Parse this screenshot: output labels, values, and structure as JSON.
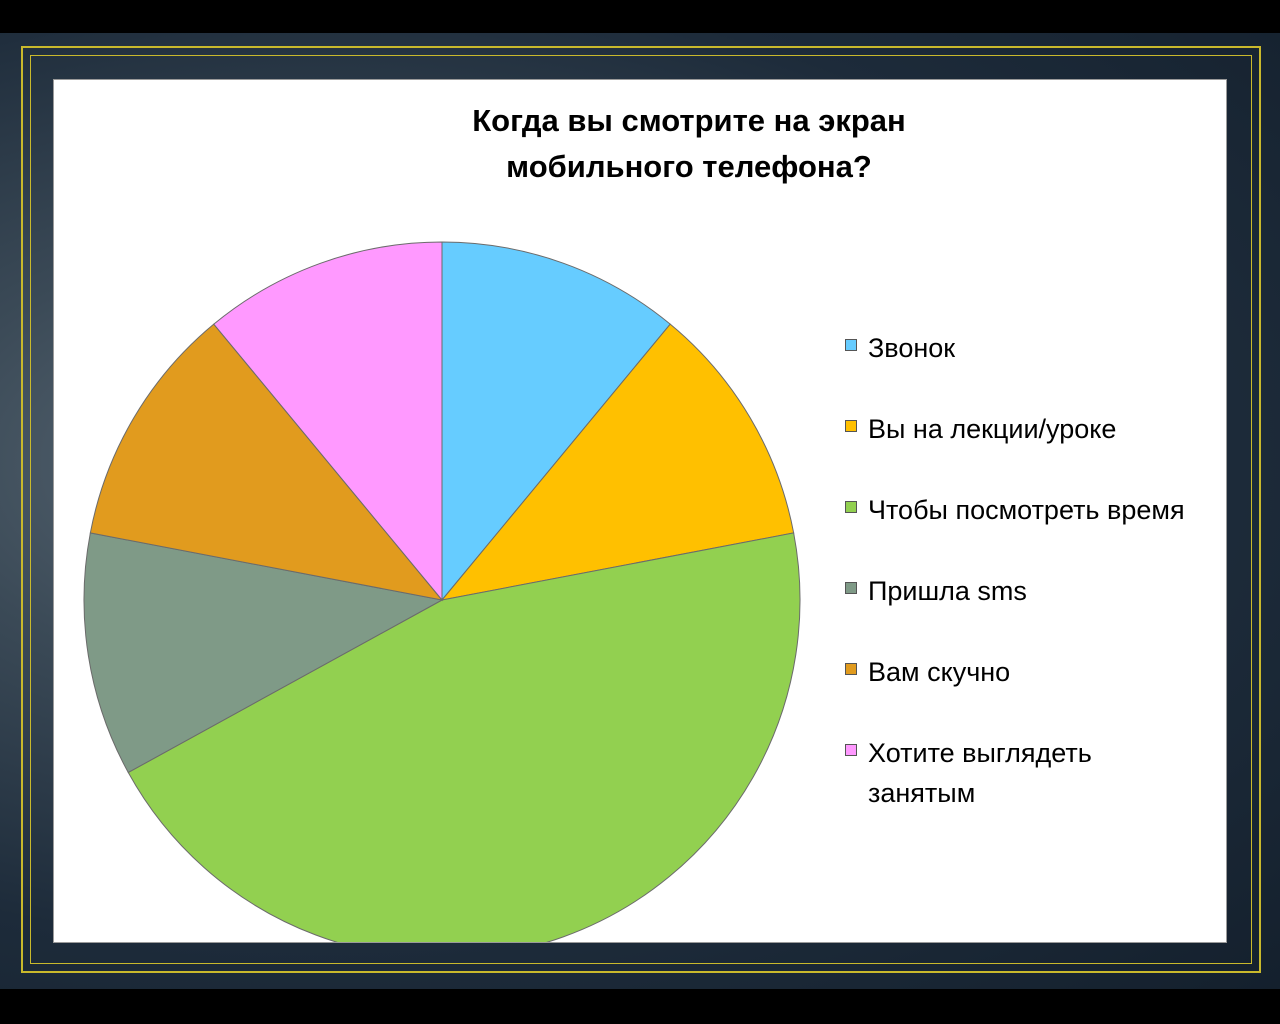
{
  "chart_data": {
    "type": "pie",
    "title": "Когда вы смотрите на экран мобильного телефона?",
    "title_lines": [
      "Когда вы смотрите на экран",
      "мобильного телефона?"
    ],
    "categories": [
      "Звонок",
      "Вы на лекции/уроке",
      "Чтобы посмотреть время",
      "Пришла sms",
      "Вам скучно",
      "Хотите выглядеть занятым"
    ],
    "values": [
      11,
      11,
      45,
      11,
      11,
      11
    ],
    "colors": [
      "#66ccff",
      "#ffc000",
      "#92d050",
      "#7f9a87",
      "#e19b1e",
      "#ff99ff"
    ],
    "legend": {
      "position": "right",
      "items": [
        {
          "lines": [
            "Звонок"
          ],
          "color": "#66ccff"
        },
        {
          "lines": [
            "Вы на лекции/уроке"
          ],
          "color": "#ffc000"
        },
        {
          "lines": [
            "Чтобы посмотреть время"
          ],
          "color": "#92d050"
        },
        {
          "lines": [
            "Пришла sms"
          ],
          "color": "#7f9a87"
        },
        {
          "lines": [
            "Вам скучно"
          ],
          "color": "#e19b1e"
        },
        {
          "lines": [
            "Хотите выглядеть",
            "занятым"
          ],
          "color": "#ff99ff"
        }
      ]
    }
  }
}
